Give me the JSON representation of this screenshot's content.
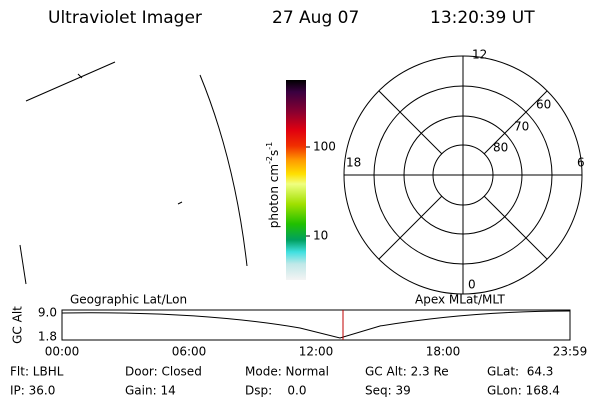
{
  "header": {
    "instrument": "Ultraviolet Imager",
    "date": "27 Aug 07",
    "time": "13:20:39 UT"
  },
  "colorbar": {
    "label": [
      "photon cm",
      "-2",
      "s",
      "-1"
    ],
    "ticks": [
      "100",
      "10"
    ]
  },
  "polar": {
    "mlt_labels": [
      "12",
      "6",
      "0",
      "18"
    ],
    "lat_labels": [
      "60",
      "70",
      "80"
    ]
  },
  "altitude_strip": {
    "axis_label": "GC Alt",
    "ticks": [
      "9.0",
      "1.8"
    ],
    "left_title": "Geographic Lat/Lon",
    "right_title": "Apex MLat/MLT",
    "time_ticks": [
      "00:00",
      "06:00",
      "12:00",
      "18:00",
      "23:59"
    ]
  },
  "status": [
    [
      "Flt: LBHL",
      "IP: 36.0"
    ],
    [
      "Door: Closed",
      "Gain: 14"
    ],
    [
      "Mode: Normal",
      "Dsp:    0.0"
    ],
    [
      "GC Alt: 2.3 Re",
      "Seq: 39"
    ],
    [
      "GLat:  64.3",
      "GLon: 168.4"
    ]
  ]
}
